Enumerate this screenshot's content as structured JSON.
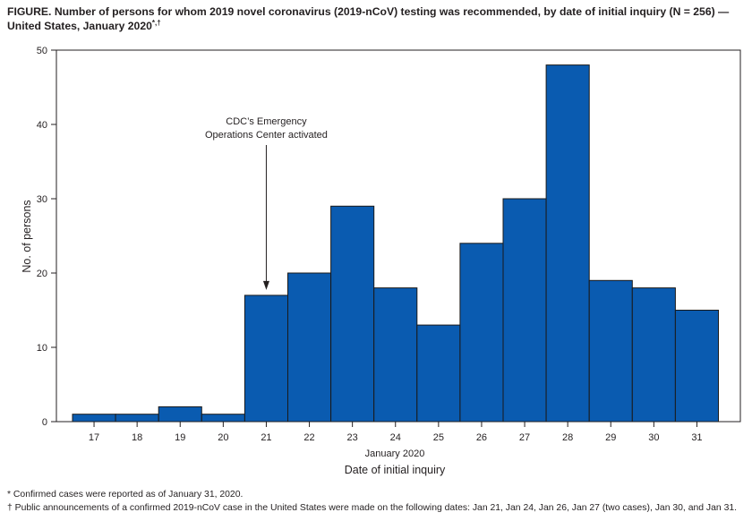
{
  "figure": {
    "title_line1": "FIGURE. Number of persons for whom 2019 novel coronavirus (2019-nCoV) testing was recommended, by date of initial inquiry (N = 256) —",
    "title_line2": "United States, January 2020",
    "title_marks": "*,†",
    "footnote1": "* Confirmed cases were reported as of January 31, 2020.",
    "footnote2": "† Public announcements of a confirmed 2019-nCoV case in the United States were made on the following dates: Jan 21, Jan 24, Jan 26, Jan 27 (two cases), Jan 30, and Jan 31."
  },
  "colors": {
    "bar_fill": "#0a5bb0",
    "bar_stroke": "#1a1a1a",
    "axis": "#231f20"
  },
  "chart_data": {
    "type": "bar",
    "title": "Number of persons for whom 2019 novel coronavirus (2019-nCoV) testing was recommended, by date of initial inquiry (N = 256) — United States, January 2020",
    "categories": [
      "17",
      "18",
      "19",
      "20",
      "21",
      "22",
      "23",
      "24",
      "25",
      "26",
      "27",
      "28",
      "29",
      "30",
      "31"
    ],
    "values": [
      1,
      1,
      2,
      1,
      17,
      20,
      29,
      18,
      13,
      24,
      30,
      48,
      19,
      18,
      15
    ],
    "xlabel_month": "January 2020",
    "xlabel": "Date of initial inquiry",
    "ylabel": "No. of persons",
    "ylim": [
      0,
      50
    ],
    "yticks": [
      0,
      10,
      20,
      30,
      40,
      50
    ],
    "grid": false,
    "annotation": {
      "lines": [
        "CDC’s Emergency",
        "Operations Center activated"
      ],
      "category": "21"
    }
  }
}
